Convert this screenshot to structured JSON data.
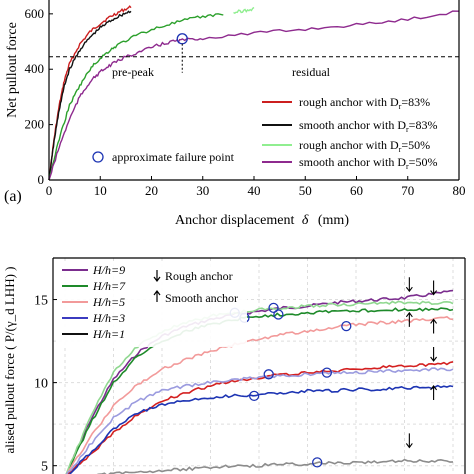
{
  "chart_data": [
    {
      "type": "line",
      "panel_label": "(a)",
      "xlabel": "Anchor displacement",
      "xlabel_symbol": "δ",
      "xlabel_unit": "(mm)",
      "ylabel": "Net pullout force",
      "xlim": [
        0,
        80
      ],
      "ylim": [
        0,
        650
      ],
      "xticks": [
        0,
        10,
        20,
        30,
        40,
        50,
        60,
        70,
        80
      ],
      "yticks": [
        0,
        200,
        400,
        600
      ],
      "grid": false,
      "legend_position": "bottom-right",
      "annotations": [
        "pre-peak",
        "residual"
      ],
      "failure_marker_label": "approximate failure point",
      "reference_line": {
        "y": 445,
        "style": "dashed"
      },
      "series": [
        {
          "name": "rough anchor with D_r=83%",
          "color": "#cc1f1f",
          "x": [
            0,
            1,
            2,
            3,
            4,
            6,
            8,
            10,
            12,
            14,
            16
          ],
          "y": [
            0,
            150,
            270,
            360,
            420,
            490,
            535,
            565,
            590,
            610,
            625
          ]
        },
        {
          "name": "smooth anchor with D_r=83%",
          "color": "#111111",
          "x": [
            0,
            1,
            2,
            3,
            4,
            6,
            8,
            10,
            12,
            14,
            16
          ],
          "y": [
            0,
            140,
            255,
            340,
            400,
            470,
            515,
            550,
            575,
            595,
            610
          ]
        },
        {
          "name": "rough anchor with D_r=50%",
          "color": "#2ca02c",
          "x": [
            0,
            2,
            4,
            6,
            8,
            10,
            12,
            14,
            18,
            22,
            26,
            30,
            34
          ],
          "y": [
            0,
            150,
            270,
            340,
            400,
            440,
            470,
            495,
            530,
            555,
            575,
            590,
            600
          ]
        },
        {
          "name": "smooth anchor with D_r=50%",
          "color": "#8e2a8e",
          "x": [
            0,
            2,
            4,
            6,
            8,
            10,
            12,
            15,
            18,
            21,
            24,
            26,
            30,
            40,
            50,
            60,
            70,
            80
          ],
          "y": [
            0,
            120,
            220,
            300,
            355,
            390,
            415,
            445,
            465,
            485,
            500,
            505,
            512,
            530,
            545,
            560,
            580,
            610
          ]
        },
        {
          "name": "rough anchor with D_r=50% (reference)",
          "color": "#90ee90",
          "x": [
            36,
            38,
            40
          ],
          "y": [
            605,
            612,
            618
          ]
        }
      ],
      "failure_points": [
        {
          "x": 26,
          "y": 510
        }
      ]
    },
    {
      "type": "line",
      "ylabel": "alised pullout force ( P/(γ_d LHH) )",
      "ylim": [
        4.5,
        17.5
      ],
      "yticks": [
        5,
        10,
        15
      ],
      "grid": true,
      "legend_position": "top-left",
      "legend_extra": {
        "down_arrow": "Rough anchor",
        "up_arrow": "Smooth anchor"
      },
      "x": [
        0,
        5,
        10,
        15,
        20,
        25,
        30,
        35,
        40,
        45,
        50,
        55,
        60,
        65,
        70,
        75,
        80
      ],
      "series": [
        {
          "name": "H/h=9",
          "color": "#7b2d8e",
          "y": [
            4.3,
            7.6,
            10.2,
            11.8,
            12.8,
            13.4,
            13.8,
            14.1,
            14.3,
            14.5,
            14.6,
            14.8,
            14.9,
            15.0,
            15.1,
            15.3,
            15.5
          ]
        },
        {
          "name": "H/h=7",
          "color": "#1e8a2a",
          "y": [
            4.3,
            7.4,
            10.0,
            11.6,
            12.5,
            13.1,
            13.5,
            13.8,
            14.0,
            14.1,
            14.2,
            14.3,
            14.3,
            14.4,
            14.4,
            14.4,
            14.4
          ]
        },
        {
          "name": "H/h=7 (light)",
          "color": "#90d890",
          "y": [
            4.3,
            7.8,
            10.6,
            12.2,
            13.1,
            13.6,
            14.0,
            14.2,
            14.4,
            14.5,
            14.6,
            14.7,
            14.7,
            14.8,
            14.8,
            14.8,
            14.8
          ]
        },
        {
          "name": "H/h=5",
          "color": "#f29a9a",
          "y": [
            4.3,
            6.6,
            8.6,
            9.9,
            10.8,
            11.4,
            11.9,
            12.3,
            12.6,
            12.9,
            13.1,
            13.3,
            13.5,
            13.6,
            13.7,
            13.8,
            13.9
          ]
        },
        {
          "name": "H/h=3 (rough)",
          "color": "#d42020",
          "y": [
            4.3,
            5.6,
            7.0,
            8.1,
            8.9,
            9.4,
            9.8,
            10.1,
            10.3,
            10.5,
            10.6,
            10.7,
            10.8,
            10.9,
            11.0,
            11.1,
            11.2
          ]
        },
        {
          "name": "H/h=3",
          "color": "#9b9bdf",
          "y": [
            4.3,
            6.2,
            7.9,
            8.9,
            9.5,
            9.8,
            10.0,
            10.2,
            10.3,
            10.4,
            10.5,
            10.6,
            10.6,
            10.7,
            10.7,
            10.8,
            10.8
          ]
        },
        {
          "name": "H/h=3 (smooth)",
          "color": "#1d34b3",
          "y": [
            4.3,
            5.7,
            7.2,
            8.2,
            8.7,
            8.9,
            9.1,
            9.2,
            9.3,
            9.4,
            9.5,
            9.5,
            9.6,
            9.6,
            9.7,
            9.7,
            9.8
          ]
        },
        {
          "name": "H/h=1",
          "color": "#8c8c8c",
          "y": [
            4.3,
            4.4,
            4.5,
            4.6,
            4.7,
            4.8,
            4.9,
            5.0,
            5.0,
            5.1,
            5.1,
            5.2,
            5.2,
            5.2,
            5.3,
            5.3,
            5.3
          ]
        }
      ],
      "legend": [
        {
          "label": "H/h=9",
          "color": "#7b2d8e"
        },
        {
          "label": "H/h=7",
          "color": "#1e8a2a"
        },
        {
          "label": "H/h=5",
          "color": "#f29a9a"
        },
        {
          "label": "H/h=3",
          "color": "#3b3bbf"
        },
        {
          "label": "H/h=1",
          "color": "#111111"
        }
      ],
      "failure_points": [
        {
          "x": 35,
          "y": 14.2
        },
        {
          "x": 37,
          "y": 13.9
        },
        {
          "x": 43,
          "y": 14.5
        },
        {
          "x": 44,
          "y": 14.1
        },
        {
          "x": 58,
          "y": 13.4
        },
        {
          "x": 42,
          "y": 10.5
        },
        {
          "x": 54,
          "y": 10.6
        },
        {
          "x": 39,
          "y": 9.2
        },
        {
          "x": 52,
          "y": 5.2
        }
      ],
      "arrows": [
        {
          "x": 71,
          "y": 15.5,
          "dir": "down"
        },
        {
          "x": 76,
          "y": 15.3,
          "dir": "down"
        },
        {
          "x": 71,
          "y": 14.2,
          "dir": "up"
        },
        {
          "x": 76,
          "y": 13.8,
          "dir": "up"
        },
        {
          "x": 76,
          "y": 11.3,
          "dir": "down"
        },
        {
          "x": 76,
          "y": 9.8,
          "dir": "up"
        },
        {
          "x": 71,
          "y": 6.1,
          "dir": "down"
        }
      ]
    }
  ],
  "legend_a": [
    {
      "text": "rough anchor with D",
      "sub": "r",
      "tail": "=83%",
      "color": "#cc1f1f"
    },
    {
      "text": "smooth anchor with D",
      "sub": "r",
      "tail": "=83%",
      "color": "#111111"
    },
    {
      "text": "rough anchor with D",
      "sub": "r",
      "tail": "=50%",
      "color": "#90ee90"
    },
    {
      "text": "smooth anchor with D",
      "sub": "r",
      "tail": "=50%",
      "color": "#8e2a8e"
    }
  ]
}
